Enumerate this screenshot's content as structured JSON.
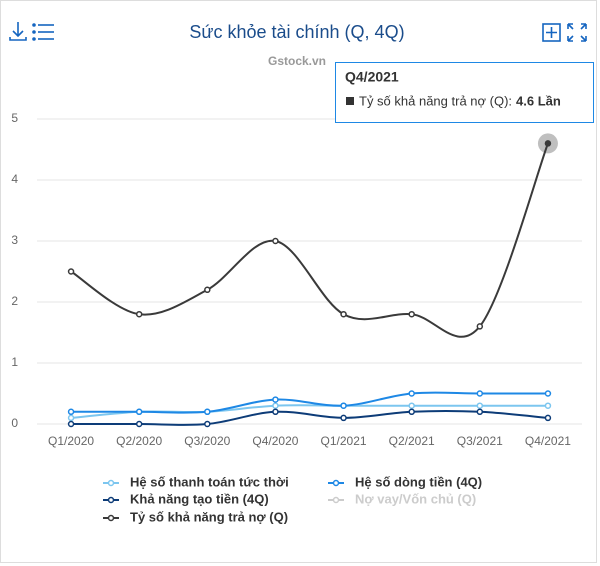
{
  "chart_data": {
    "type": "line",
    "title": "Sức khỏe tài chính (Q, 4Q)",
    "subtitle": "Gstock.vn",
    "categories": [
      "Q1/2020",
      "Q2/2020",
      "Q3/2020",
      "Q4/2020",
      "Q1/2021",
      "Q2/2021",
      "Q3/2021",
      "Q4/2021"
    ],
    "series": [
      {
        "name": "Hệ số thanh toán tức thời",
        "color": "#7cc6ef",
        "values": [
          0.1,
          0.2,
          0.2,
          0.3,
          0.3,
          0.3,
          0.3,
          0.3
        ]
      },
      {
        "name": "Hệ số dòng tiền (4Q)",
        "color": "#1e88e5",
        "values": [
          0.2,
          0.2,
          0.2,
          0.4,
          0.3,
          0.5,
          0.5,
          0.5
        ]
      },
      {
        "name": "Khả năng tạo tiền (4Q)",
        "color": "#0d3c78",
        "values": [
          0,
          0,
          0,
          0.2,
          0.1,
          0.2,
          0.2,
          0.1
        ]
      },
      {
        "name": "Nợ vay/Vốn chủ (Q)",
        "color": "#cccccc",
        "visible": false,
        "values": [
          null,
          null,
          null,
          null,
          null,
          null,
          null,
          null
        ]
      },
      {
        "name": "Tỷ số khả năng trả nợ (Q)",
        "color": "#3a3a3a",
        "values": [
          2.5,
          1.8,
          2.2,
          3.0,
          1.8,
          1.8,
          1.6,
          4.6
        ]
      }
    ],
    "ylim": [
      0,
      5
    ],
    "yticks": [
      0,
      1,
      2,
      3,
      4,
      5
    ],
    "grid": true,
    "tooltip": {
      "title": "Q4/2021",
      "label": "Tỷ số khả năng trả nợ (Q):",
      "value_label": "4.6 Lần"
    }
  }
}
